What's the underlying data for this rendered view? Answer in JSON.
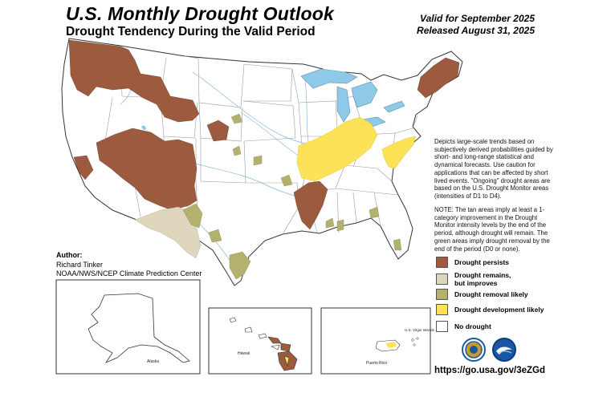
{
  "header": {
    "title": "U.S. Monthly Drought Outlook",
    "subtitle": "Drought Tendency During the Valid Period",
    "valid": "Valid for September 2025",
    "released": "Released August 31, 2025"
  },
  "description": "Depicts large-scale trends based on subjectively derived probabilities guided by short- and long-range statistical and dynamical forecasts. Use caution for applications that can be affected by short lived events. \"Ongoing\" drought areas are based on the U.S. Drought Monitor areas (intensities of D1 to D4).",
  "note": "NOTE: The tan areas imply at least a 1-category improvement in the Drought Monitor intensity levels by the end of the period, although drought will remain. The green areas imply drought removal by the end of the period (D0 or none).",
  "legend": [
    {
      "label": "Drought persists",
      "color": "#9c5b3f"
    },
    {
      "label": "Drought remains, but improves",
      "color": "#ddd6bc"
    },
    {
      "label": "Drought removal likely",
      "color": "#b3b16d"
    },
    {
      "label": "Drought development likely",
      "color": "#fbe257"
    },
    {
      "label": "No drought",
      "color": "#ffffff"
    }
  ],
  "author": {
    "heading": "Author:",
    "name": "Richard Tinker",
    "org": "NOAA/NWS/NCEP Climate Prediction Center"
  },
  "insets": {
    "alaska": "Alaska",
    "hawaii": "Hawaii",
    "puerto_rico": "Puerto Rico",
    "usvi": "U.S. Virgin Islands"
  },
  "url": "https://go.usa.gov/3eZGd",
  "colors": {
    "persists": "#9c5b3f",
    "improves": "#ddd6bc",
    "removal": "#b3b16d",
    "development": "#fbe257",
    "water": "#8fc9e8",
    "river": "#8ab8dd",
    "state_line": "#9a9a9a",
    "coast": "#333333"
  },
  "logos": {
    "noaa": "noaa-logo",
    "nws": "nws-logo"
  }
}
